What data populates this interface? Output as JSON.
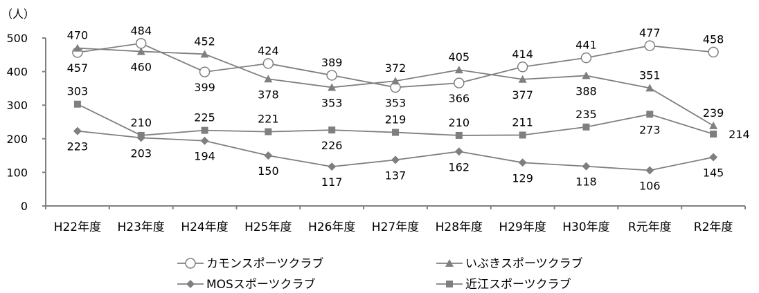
{
  "chart_data": {
    "type": "line",
    "unit": "（人）",
    "categories": [
      "H22年度",
      "H23年度",
      "H24年度",
      "H25年度",
      "H26年度",
      "H27年度",
      "H28年度",
      "H29年度",
      "H30年度",
      "R元年度",
      "R2年度"
    ],
    "ylim": [
      0,
      500
    ],
    "yticks": [
      0,
      100,
      200,
      300,
      400,
      500
    ],
    "grid": false,
    "legend_position": "bottom",
    "series": [
      {
        "name": "カモンスポーツクラブ",
        "marker": "circle-open",
        "color": "#7f7f7f",
        "values": [
          457,
          484,
          399,
          424,
          389,
          353,
          366,
          414,
          441,
          477,
          458
        ],
        "label_pos": [
          "below",
          "above",
          "below",
          "above",
          "above",
          "below",
          "below",
          "above",
          "above",
          "above",
          "above"
        ]
      },
      {
        "name": "いぶきスポーツクラブ",
        "marker": "triangle",
        "color": "#7f7f7f",
        "values": [
          470,
          460,
          452,
          378,
          353,
          372,
          405,
          377,
          388,
          351,
          239
        ],
        "label_pos": [
          "above",
          "below",
          "above",
          "below",
          "below",
          "above",
          "above",
          "below",
          "below",
          "above",
          "above"
        ]
      },
      {
        "name": "MOSスポーツクラブ",
        "marker": "diamond",
        "color": "#7f7f7f",
        "values": [
          223,
          203,
          194,
          150,
          117,
          137,
          162,
          129,
          118,
          106,
          145
        ],
        "label_pos": [
          "below",
          "below",
          "below",
          "below",
          "below",
          "below",
          "below",
          "below",
          "below",
          "below",
          "below"
        ]
      },
      {
        "name": "近江スポーツクラブ",
        "marker": "square",
        "color": "#7f7f7f",
        "values": [
          303,
          210,
          225,
          221,
          226,
          219,
          210,
          211,
          235,
          273,
          214
        ],
        "label_pos": [
          "above",
          "above",
          "above",
          "above",
          "below",
          "above",
          "above",
          "above",
          "above",
          "below",
          "right"
        ]
      }
    ]
  }
}
